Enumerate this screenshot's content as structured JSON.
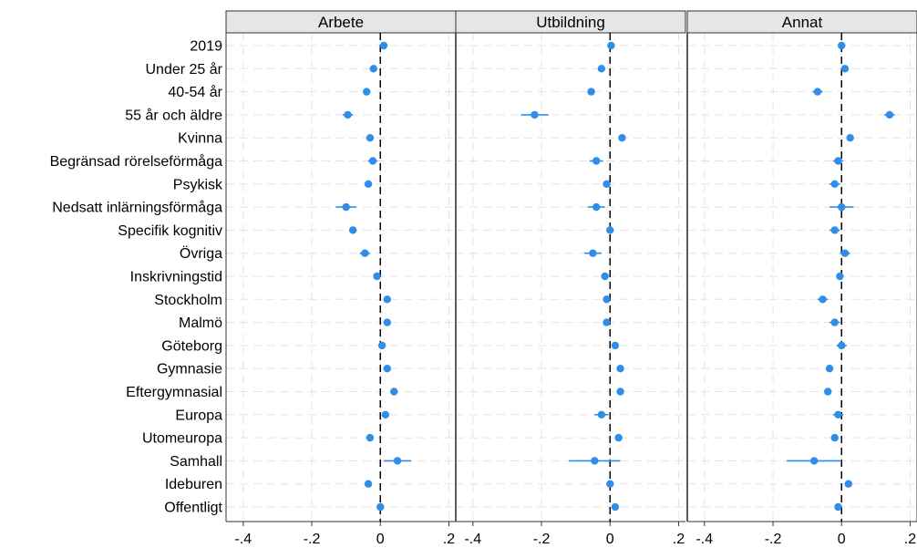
{
  "chart_data": {
    "type": "scatter",
    "subtype": "coefficient-plot",
    "categories": [
      "2019",
      "Under 25 år",
      "40-54 år",
      "55 år och äldre",
      "Kvinna",
      "Begränsad rörelseförmåga",
      "Psykisk",
      "Nedsatt inlärningsförmåga",
      "Specifik kognitiv",
      "Övriga",
      "Inskrivningstid",
      "Stockholm",
      "Malmö",
      "Göteborg",
      "Gymnasie",
      "Eftergymnasial",
      "Europa",
      "Utomeuropa",
      "Samhall",
      "Ideburen",
      "Offentligt"
    ],
    "xlim": [
      -0.45,
      0.22
    ],
    "xticks": [
      -0.4,
      -0.2,
      0,
      0.2
    ],
    "xtick_labels": [
      "-.4",
      "-.2",
      "0",
      ".2"
    ],
    "reference_line": 0,
    "grid": true,
    "marker_color": "#2e8ee8",
    "panels": [
      {
        "title": "Arbete",
        "estimates": [
          0.01,
          -0.02,
          -0.04,
          -0.095,
          -0.03,
          -0.022,
          -0.035,
          -0.1,
          -0.08,
          -0.045,
          -0.01,
          0.02,
          0.02,
          0.005,
          0.02,
          0.04,
          0.015,
          -0.03,
          0.05,
          -0.035,
          0.0
        ],
        "ci_low": [
          0.005,
          -0.028,
          -0.05,
          -0.11,
          -0.036,
          -0.036,
          -0.046,
          -0.13,
          -0.09,
          -0.06,
          -0.016,
          0.014,
          0.014,
          -0.004,
          0.014,
          0.033,
          0.004,
          -0.036,
          0.01,
          -0.041,
          -0.006
        ],
        "ci_high": [
          0.015,
          -0.012,
          -0.03,
          -0.08,
          -0.024,
          -0.008,
          -0.024,
          -0.07,
          -0.07,
          -0.03,
          -0.004,
          0.026,
          0.026,
          0.014,
          0.026,
          0.047,
          0.026,
          -0.024,
          0.09,
          -0.029,
          0.006
        ]
      },
      {
        "title": "Utbildning",
        "estimates": [
          0.003,
          -0.025,
          -0.055,
          -0.22,
          0.035,
          -0.04,
          -0.01,
          -0.04,
          0.0,
          -0.05,
          -0.015,
          -0.01,
          -0.01,
          0.015,
          0.03,
          0.03,
          -0.025,
          0.025,
          -0.045,
          0.0,
          0.015
        ],
        "ci_low": [
          -0.003,
          -0.031,
          -0.061,
          -0.26,
          0.029,
          -0.06,
          -0.018,
          -0.065,
          -0.006,
          -0.075,
          -0.021,
          -0.018,
          -0.018,
          0.009,
          0.024,
          0.024,
          -0.045,
          0.019,
          -0.12,
          -0.006,
          0.009
        ],
        "ci_high": [
          0.009,
          -0.019,
          -0.049,
          -0.18,
          0.041,
          -0.02,
          -0.002,
          -0.015,
          0.006,
          -0.025,
          -0.009,
          -0.002,
          -0.002,
          0.021,
          0.036,
          0.036,
          -0.005,
          0.031,
          0.03,
          0.006,
          0.021
        ]
      },
      {
        "title": "Annat",
        "estimates": [
          0.0,
          0.01,
          -0.07,
          0.14,
          0.025,
          -0.01,
          -0.02,
          0.0,
          -0.02,
          0.01,
          -0.005,
          -0.055,
          -0.02,
          0.0,
          -0.035,
          -0.04,
          -0.01,
          -0.02,
          -0.08,
          0.02,
          -0.01
        ],
        "ci_low": [
          -0.006,
          0.0,
          -0.085,
          0.125,
          0.019,
          -0.025,
          -0.035,
          -0.035,
          -0.035,
          -0.005,
          -0.011,
          -0.07,
          -0.035,
          -0.015,
          -0.041,
          -0.05,
          -0.025,
          -0.03,
          -0.16,
          0.014,
          -0.016
        ],
        "ci_high": [
          0.006,
          0.02,
          -0.055,
          0.155,
          0.031,
          0.005,
          -0.005,
          0.035,
          -0.005,
          0.025,
          0.001,
          -0.04,
          -0.005,
          0.015,
          -0.029,
          -0.03,
          0.005,
          -0.01,
          0.0,
          0.026,
          -0.004
        ]
      }
    ]
  }
}
